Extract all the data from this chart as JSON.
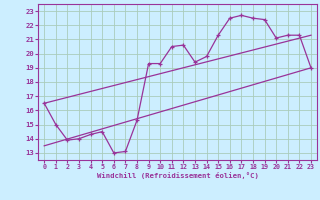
{
  "xlabel": "Windchill (Refroidissement éolien,°C)",
  "bg_color": "#cceeff",
  "line_color": "#993399",
  "grid_color": "#aaccbb",
  "xlim": [
    -0.5,
    23.5
  ],
  "ylim": [
    12.5,
    23.5
  ],
  "xticks": [
    0,
    1,
    2,
    3,
    4,
    5,
    6,
    7,
    8,
    9,
    10,
    11,
    12,
    13,
    14,
    15,
    16,
    17,
    18,
    19,
    20,
    21,
    22,
    23
  ],
  "yticks": [
    13,
    14,
    15,
    16,
    17,
    18,
    19,
    20,
    21,
    22,
    23
  ],
  "series1_x": [
    0,
    1,
    2,
    3,
    4,
    5,
    6,
    7,
    8,
    9,
    10,
    11,
    12,
    13,
    14,
    15,
    16,
    17,
    18,
    19,
    20,
    21,
    22,
    23
  ],
  "series1_y": [
    16.5,
    15.0,
    13.9,
    14.0,
    14.3,
    14.5,
    13.0,
    13.1,
    15.3,
    19.3,
    19.3,
    20.5,
    20.6,
    19.4,
    19.8,
    21.3,
    22.5,
    22.7,
    22.5,
    22.4,
    21.1,
    21.3,
    21.3,
    19.0
  ],
  "series2_x": [
    0,
    23
  ],
  "series2_y": [
    13.5,
    19.0
  ],
  "series3_x": [
    0,
    23
  ],
  "series3_y": [
    16.5,
    21.3
  ]
}
